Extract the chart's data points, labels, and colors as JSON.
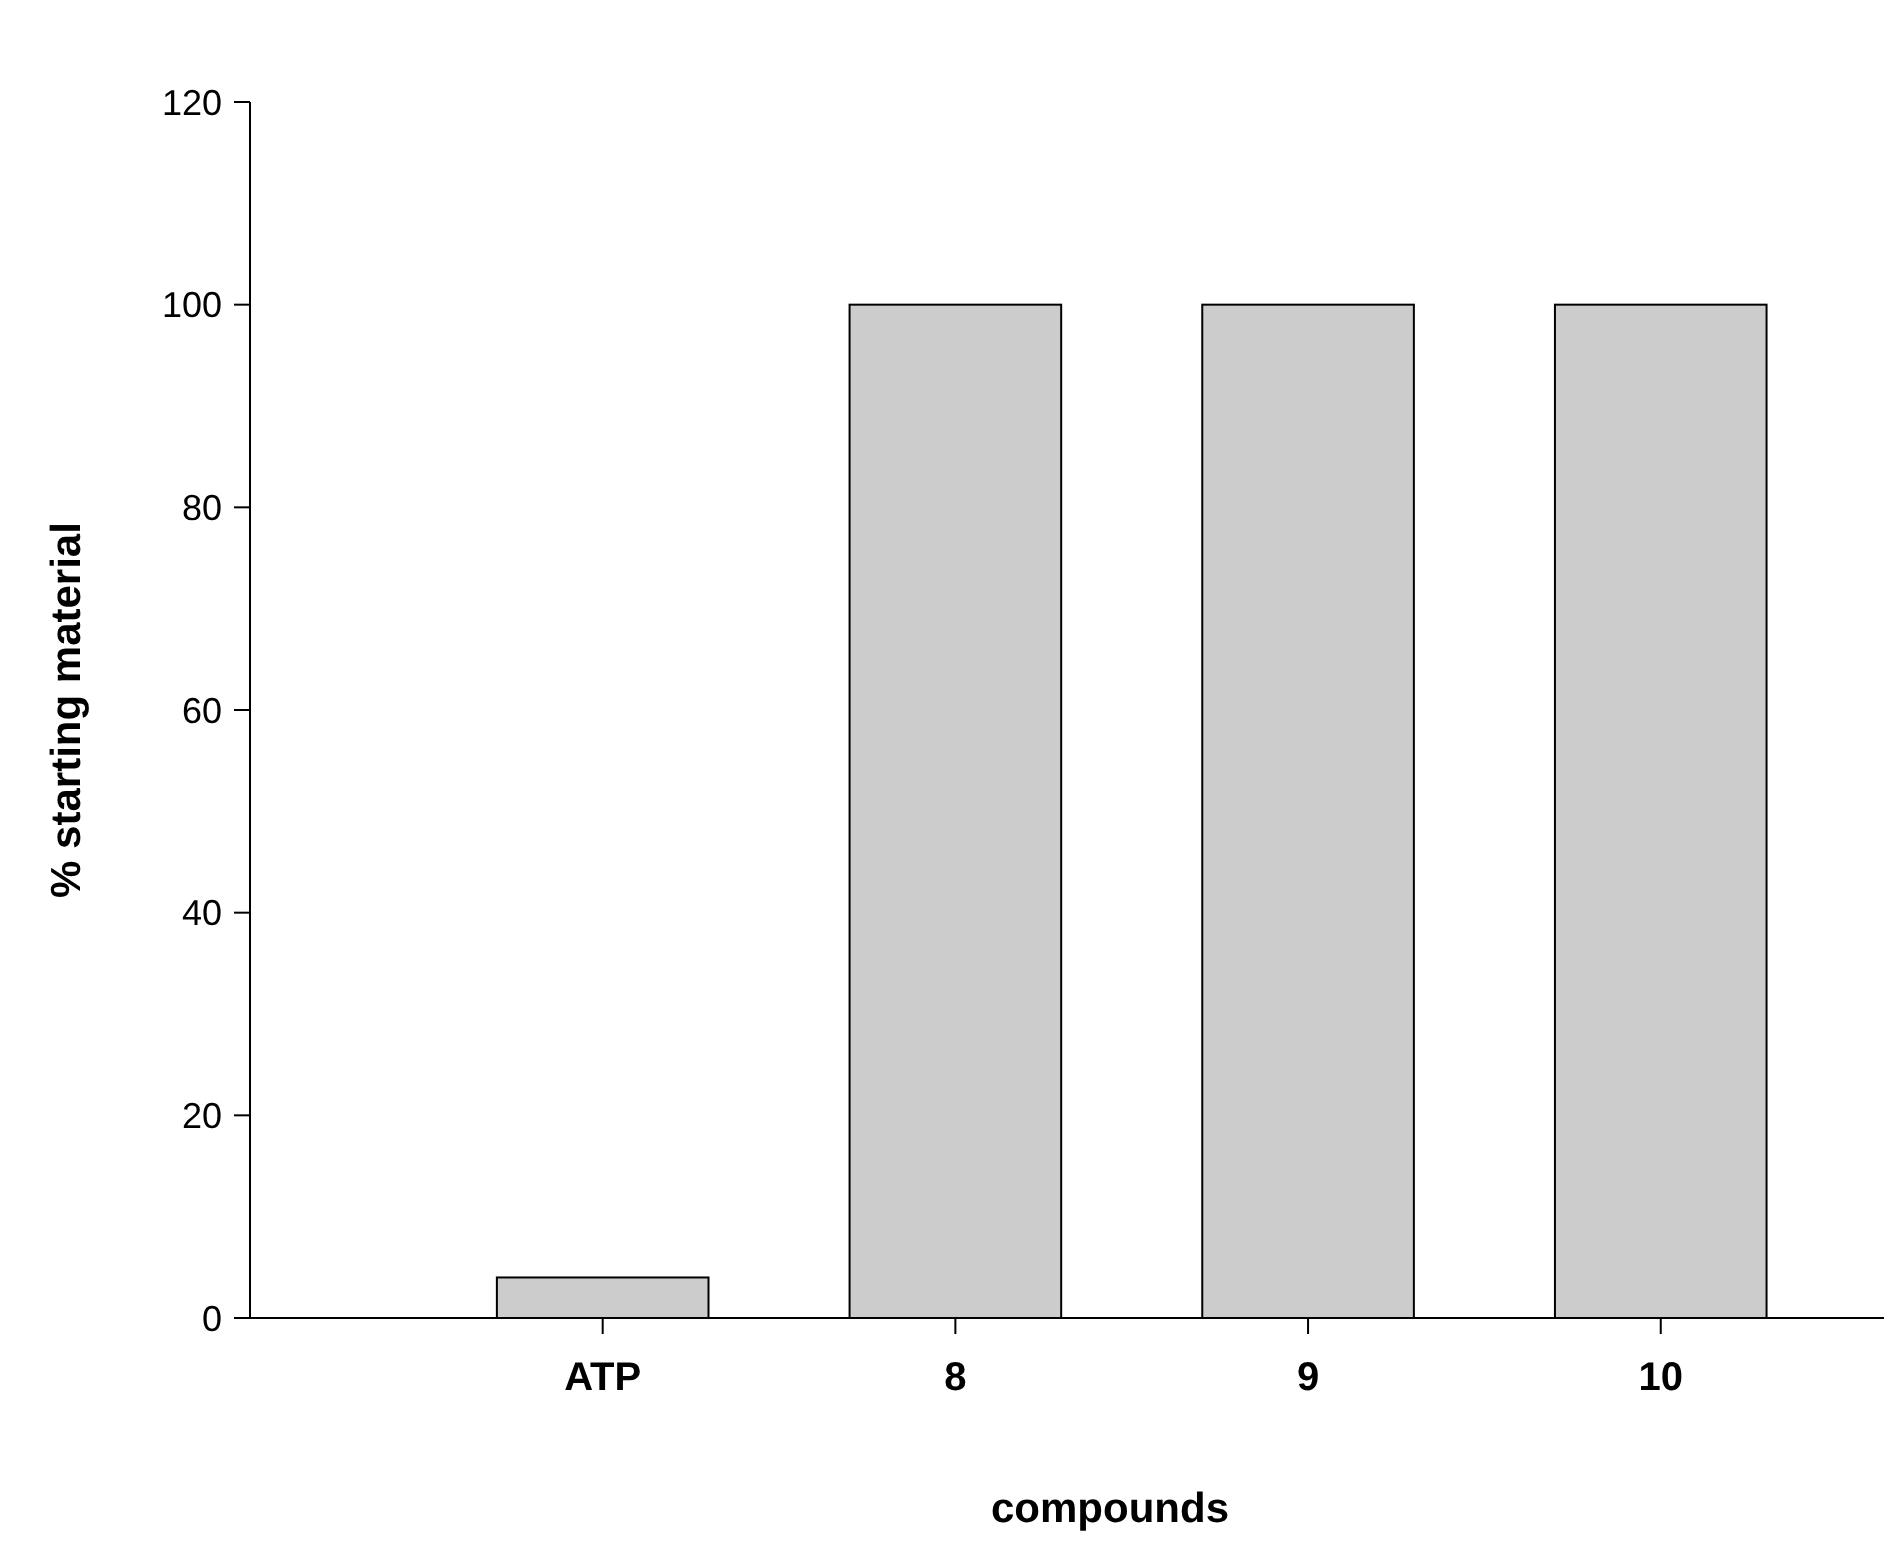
{
  "chart_data": {
    "type": "bar",
    "xlabel": "compounds",
    "ylabel": "% starting material",
    "categories": [
      "ATP",
      "8",
      "9",
      "10"
    ],
    "values": [
      4,
      100,
      100,
      100
    ],
    "color": "#cccccc",
    "ylim": [
      0,
      120
    ],
    "yticks": [
      0,
      20,
      40,
      60,
      80,
      100,
      120
    ],
    "grid": false
  }
}
